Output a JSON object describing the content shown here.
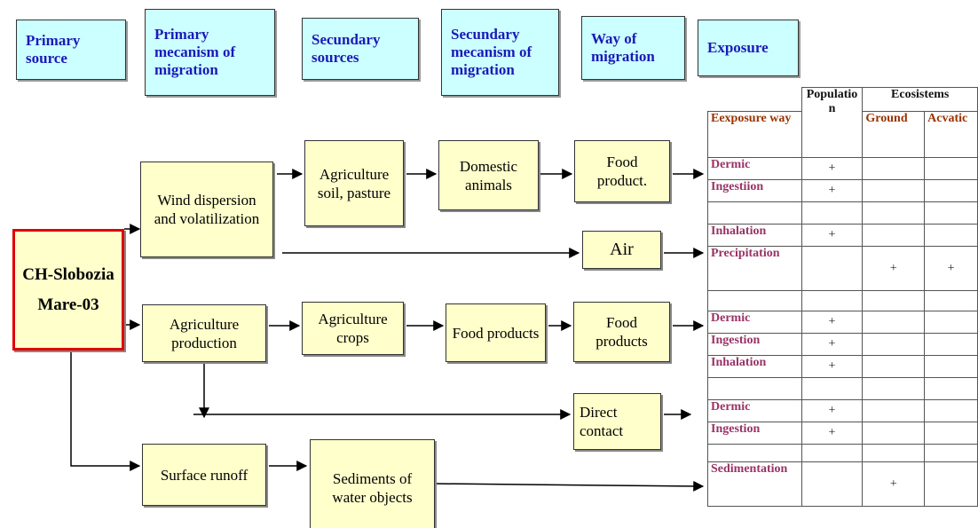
{
  "headers": [
    "Primary source",
    "Primary mecanism of migration",
    "Secundary sources",
    "Secundary mecanism of migration",
    "Way of migration",
    "Exposure"
  ],
  "nodes": [
    {
      "label": "CH-Slobozia Mare-03"
    },
    {
      "label": "Wind dispersion and volatilization"
    },
    {
      "label": "Agriculture soil, pasture"
    },
    {
      "label": "Domestic animals"
    },
    {
      "label": "Food product."
    },
    {
      "label": "Air"
    },
    {
      "label": "Agriculture production"
    },
    {
      "label": "Agriculture crops"
    },
    {
      "label": "Food products"
    },
    {
      "label": "Food products"
    },
    {
      "label": "Direct contact"
    },
    {
      "label": "Surface runoff"
    },
    {
      "label": "Sediments of water objects"
    }
  ],
  "table": {
    "header": [
      "Population",
      "Ecosistems"
    ],
    "subheader": [
      "Eexposure way",
      "Ground",
      "Acvatic"
    ],
    "rows": [
      [
        "Dermic",
        "+",
        null,
        null
      ],
      [
        "Ingestiion",
        "+",
        null,
        null
      ],
      [
        null,
        null,
        null,
        null
      ],
      [
        "Inhalation",
        "+",
        null,
        null
      ],
      [
        "Precipitation",
        null,
        "+",
        "+"
      ],
      [
        null,
        null,
        null,
        null
      ],
      [
        "Dermic",
        "+",
        null,
        null
      ],
      [
        "Ingestion",
        "+",
        null,
        null
      ],
      [
        "Inhalation",
        "+",
        null,
        null
      ],
      [
        null,
        null,
        null,
        null
      ],
      [
        "Dermic",
        "+",
        null,
        null
      ],
      [
        "Ingestion",
        "+",
        null,
        null
      ],
      [
        null,
        null,
        null,
        null
      ],
      [
        "Sedimentation",
        null,
        "+",
        null
      ]
    ]
  }
}
